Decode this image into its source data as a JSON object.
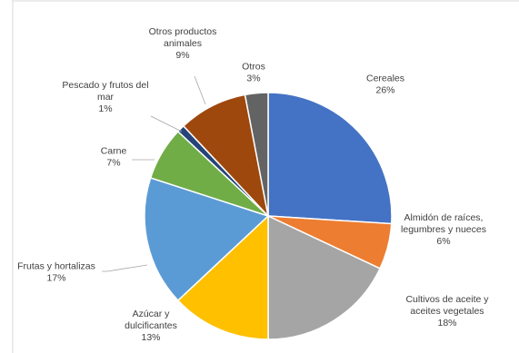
{
  "chart_data": {
    "type": "pie",
    "title": "",
    "slices": [
      {
        "label": [
          "Cereales"
        ],
        "value": 26,
        "pct": "26%",
        "color": "#4472c4"
      },
      {
        "label": [
          "Almidón de raíces,",
          "legumbres y nueces"
        ],
        "value": 6,
        "pct": "6%",
        "color": "#ed7d31"
      },
      {
        "label": [
          "Cultivos de aceite y",
          "aceites vegetales"
        ],
        "value": 18,
        "pct": "18%",
        "color": "#a5a5a5"
      },
      {
        "label": [
          "Azúcar y",
          "dulcificantes"
        ],
        "value": 13,
        "pct": "13%",
        "color": "#ffc000"
      },
      {
        "label": [
          "Frutas y hortalizas"
        ],
        "value": 17,
        "pct": "17%",
        "color": "#5b9bd5"
      },
      {
        "label": [
          "Carne"
        ],
        "value": 7,
        "pct": "7%",
        "color": "#70ad47"
      },
      {
        "label": [
          "Pescado y frutos del",
          "mar"
        ],
        "value": 1,
        "pct": "1%",
        "color": "#264478"
      },
      {
        "label": [
          "Otros productos",
          "animales"
        ],
        "value": 9,
        "pct": "9%",
        "color": "#9e480e"
      },
      {
        "label": [
          "Otros"
        ],
        "value": 3,
        "pct": "3%",
        "color": "#636363"
      }
    ],
    "start_angle_deg": 0,
    "direction": "clockwise",
    "legend": "none"
  }
}
